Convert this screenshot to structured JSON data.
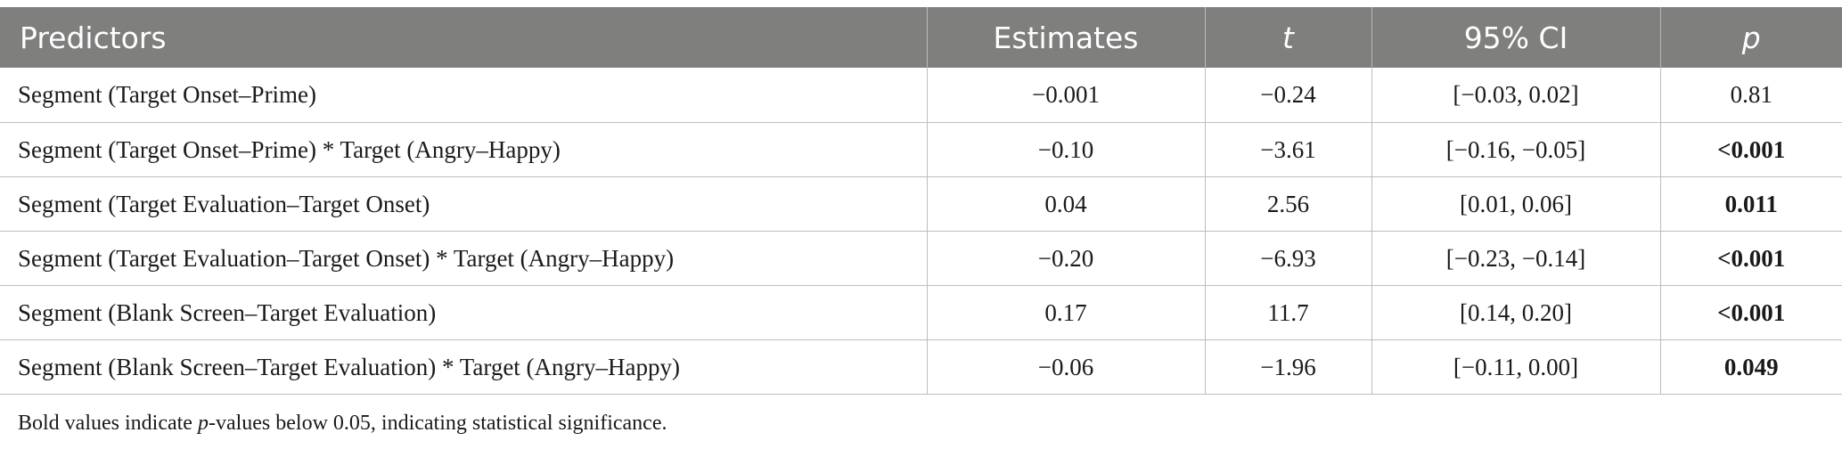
{
  "table": {
    "headers": [
      "Predictors",
      "Estimates",
      "t",
      "95% CI",
      "p"
    ],
    "rows": [
      {
        "predictor": "Segment (Target Onset–Prime)",
        "estimate": "−0.001",
        "t": "−0.24",
        "ci": "[−0.03, 0.02]",
        "p": "0.81",
        "p_bold": false
      },
      {
        "predictor": "Segment (Target Onset–Prime) * Target (Angry–Happy)",
        "estimate": "−0.10",
        "t": "−3.61",
        "ci": "[−0.16, −0.05]",
        "p": "<0.001",
        "p_bold": true
      },
      {
        "predictor": "Segment (Target Evaluation–Target Onset)",
        "estimate": "0.04",
        "t": "2.56",
        "ci": "[0.01, 0.06]",
        "p": "0.011",
        "p_bold": true
      },
      {
        "predictor": "Segment (Target Evaluation–Target Onset) * Target (Angry–Happy)",
        "estimate": "−0.20",
        "t": "−6.93",
        "ci": "[−0.23, −0.14]",
        "p": "<0.001",
        "p_bold": true
      },
      {
        "predictor": "Segment (Blank Screen–Target Evaluation)",
        "estimate": "0.17",
        "t": "11.7",
        "ci": "[0.14, 0.20]",
        "p": "<0.001",
        "p_bold": true
      },
      {
        "predictor": "Segment (Blank Screen–Target Evaluation) * Target (Angry–Happy)",
        "estimate": "−0.06",
        "t": "−1.96",
        "ci": "[−0.11, 0.00]",
        "p": "0.049",
        "p_bold": true
      }
    ]
  },
  "footnote": {
    "prefix": "Bold values indicate ",
    "italic": "p",
    "suffix": "-values below 0.05, indicating statistical significance."
  },
  "colors": {
    "header_bg": "#7f7f7e",
    "header_text": "#ffffff",
    "grid": "#bdbdbd"
  }
}
